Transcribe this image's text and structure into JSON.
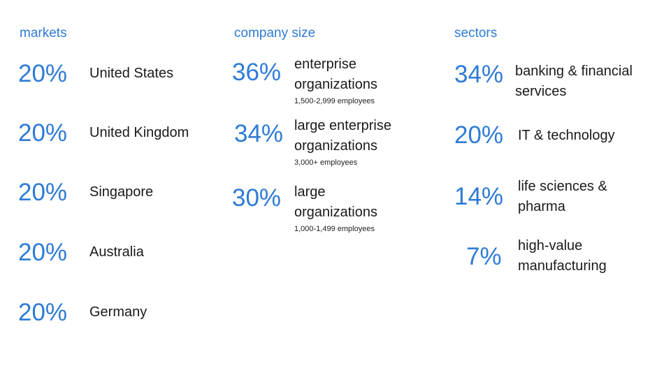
{
  "markets": {
    "heading": "markets",
    "items": [
      {
        "percent": "20%",
        "label": "United States"
      },
      {
        "percent": "20%",
        "label": "United Kingdom"
      },
      {
        "percent": "20%",
        "label": "Singapore"
      },
      {
        "percent": "20%",
        "label": "Australia"
      },
      {
        "percent": "20%",
        "label": "Germany"
      }
    ]
  },
  "company_size": {
    "heading": "company size",
    "items": [
      {
        "percent": "36%",
        "label_line1": "enterprise",
        "label_line2": "organizations",
        "detail": "1,500-2,999 employees"
      },
      {
        "percent": "34%",
        "label_line1": "large enterprise",
        "label_line2": "organizations",
        "detail": "3,000+ employees"
      },
      {
        "percent": "30%",
        "label_line1": "large",
        "label_line2": "organizations",
        "detail": "1,000-1,499 employees"
      }
    ]
  },
  "sectors": {
    "heading": "sectors",
    "items": [
      {
        "percent": "34%",
        "label_line1": "banking & financial",
        "label_line2": "services"
      },
      {
        "percent": "20%",
        "label_line1": "IT & technology",
        "label_line2": ""
      },
      {
        "percent": "14%",
        "label_line1": "life sciences &",
        "label_line2": "pharma"
      },
      {
        "percent": "7%",
        "label_line1": "high-value",
        "label_line2": "manufacturing"
      }
    ]
  }
}
